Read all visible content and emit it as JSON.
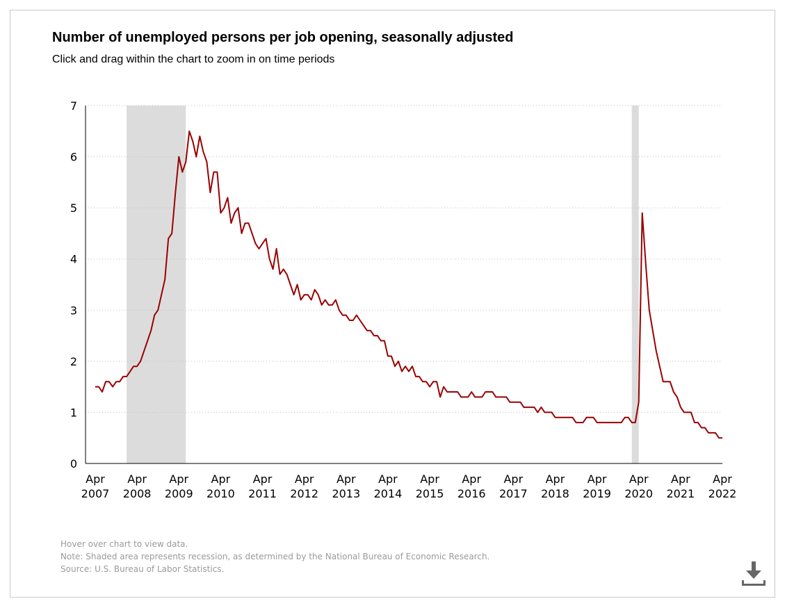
{
  "header": {
    "title": "Number of unemployed persons per job opening, seasonally adjusted",
    "subtitle": "Click and drag within the chart to zoom in on time periods"
  },
  "footer": {
    "hover_note": "Hover over chart to view data.",
    "recession_note": "Note: Shaded area represents recession, as determined by the National Bureau of Economic Research.",
    "source": "Source: U.S. Bureau of Labor Statistics."
  },
  "icons": {
    "download": "download-icon"
  },
  "colors": {
    "line": "#990000",
    "recession": "#dcdcdc",
    "grid": "#bdbdbd"
  },
  "chart_data": {
    "type": "line",
    "title": "Number of unemployed persons per job opening, seasonally adjusted",
    "xlabel": "",
    "ylabel": "",
    "ylim": [
      0,
      7
    ],
    "yticks": [
      0,
      1,
      2,
      3,
      4,
      5,
      6,
      7
    ],
    "xlim": [
      "2007-04",
      "2022-04"
    ],
    "xticks": [
      {
        "month": "Apr",
        "year": "2007",
        "date": "2007-04"
      },
      {
        "month": "Apr",
        "year": "2008",
        "date": "2008-04"
      },
      {
        "month": "Apr",
        "year": "2009",
        "date": "2009-04"
      },
      {
        "month": "Apr",
        "year": "2010",
        "date": "2010-04"
      },
      {
        "month": "Apr",
        "year": "2011",
        "date": "2011-04"
      },
      {
        "month": "Apr",
        "year": "2012",
        "date": "2012-04"
      },
      {
        "month": "Apr",
        "year": "2013",
        "date": "2013-04"
      },
      {
        "month": "Apr",
        "year": "2014",
        "date": "2014-04"
      },
      {
        "month": "Apr",
        "year": "2015",
        "date": "2015-04"
      },
      {
        "month": "Apr",
        "year": "2016",
        "date": "2016-04"
      },
      {
        "month": "Apr",
        "year": "2017",
        "date": "2017-04"
      },
      {
        "month": "Apr",
        "year": "2018",
        "date": "2018-04"
      },
      {
        "month": "Apr",
        "year": "2019",
        "date": "2019-04"
      },
      {
        "month": "Apr",
        "year": "2020",
        "date": "2020-04"
      },
      {
        "month": "Apr",
        "year": "2021",
        "date": "2021-04"
      },
      {
        "month": "Apr",
        "year": "2022",
        "date": "2022-04"
      }
    ],
    "grid": "horizontal dotted",
    "recessions": [
      {
        "start": "2008-01",
        "end": "2009-06"
      },
      {
        "start": "2020-02",
        "end": "2020-04"
      }
    ],
    "series": [
      {
        "name": "",
        "points": [
          [
            "2007-04",
            1.5
          ],
          [
            "2007-05",
            1.5
          ],
          [
            "2007-06",
            1.4
          ],
          [
            "2007-07",
            1.6
          ],
          [
            "2007-08",
            1.6
          ],
          [
            "2007-09",
            1.5
          ],
          [
            "2007-10",
            1.6
          ],
          [
            "2007-11",
            1.6
          ],
          [
            "2007-12",
            1.7
          ],
          [
            "2008-01",
            1.7
          ],
          [
            "2008-02",
            1.8
          ],
          [
            "2008-03",
            1.9
          ],
          [
            "2008-04",
            1.9
          ],
          [
            "2008-05",
            2.0
          ],
          [
            "2008-06",
            2.2
          ],
          [
            "2008-07",
            2.4
          ],
          [
            "2008-08",
            2.6
          ],
          [
            "2008-09",
            2.9
          ],
          [
            "2008-10",
            3.0
          ],
          [
            "2008-11",
            3.3
          ],
          [
            "2008-12",
            3.6
          ],
          [
            "2009-01",
            4.4
          ],
          [
            "2009-02",
            4.5
          ],
          [
            "2009-03",
            5.3
          ],
          [
            "2009-04",
            6.0
          ],
          [
            "2009-05",
            5.7
          ],
          [
            "2009-06",
            5.9
          ],
          [
            "2009-07",
            6.5
          ],
          [
            "2009-08",
            6.3
          ],
          [
            "2009-09",
            6.0
          ],
          [
            "2009-10",
            6.4
          ],
          [
            "2009-11",
            6.1
          ],
          [
            "2009-12",
            5.9
          ],
          [
            "2010-01",
            5.3
          ],
          [
            "2010-02",
            5.7
          ],
          [
            "2010-03",
            5.7
          ],
          [
            "2010-04",
            4.9
          ],
          [
            "2010-05",
            5.0
          ],
          [
            "2010-06",
            5.2
          ],
          [
            "2010-07",
            4.7
          ],
          [
            "2010-08",
            4.9
          ],
          [
            "2010-09",
            5.0
          ],
          [
            "2010-10",
            4.5
          ],
          [
            "2010-11",
            4.7
          ],
          [
            "2010-12",
            4.7
          ],
          [
            "2011-01",
            4.5
          ],
          [
            "2011-02",
            4.3
          ],
          [
            "2011-03",
            4.2
          ],
          [
            "2011-04",
            4.3
          ],
          [
            "2011-05",
            4.4
          ],
          [
            "2011-06",
            4.0
          ],
          [
            "2011-07",
            3.8
          ],
          [
            "2011-08",
            4.2
          ],
          [
            "2011-09",
            3.7
          ],
          [
            "2011-10",
            3.8
          ],
          [
            "2011-11",
            3.7
          ],
          [
            "2011-12",
            3.5
          ],
          [
            "2012-01",
            3.3
          ],
          [
            "2012-02",
            3.5
          ],
          [
            "2012-03",
            3.2
          ],
          [
            "2012-04",
            3.3
          ],
          [
            "2012-05",
            3.3
          ],
          [
            "2012-06",
            3.2
          ],
          [
            "2012-07",
            3.4
          ],
          [
            "2012-08",
            3.3
          ],
          [
            "2012-09",
            3.1
          ],
          [
            "2012-10",
            3.2
          ],
          [
            "2012-11",
            3.1
          ],
          [
            "2012-12",
            3.1
          ],
          [
            "2013-01",
            3.2
          ],
          [
            "2013-02",
            3.0
          ],
          [
            "2013-03",
            2.9
          ],
          [
            "2013-04",
            2.9
          ],
          [
            "2013-05",
            2.8
          ],
          [
            "2013-06",
            2.8
          ],
          [
            "2013-07",
            2.9
          ],
          [
            "2013-08",
            2.8
          ],
          [
            "2013-09",
            2.7
          ],
          [
            "2013-10",
            2.6
          ],
          [
            "2013-11",
            2.6
          ],
          [
            "2013-12",
            2.5
          ],
          [
            "2014-01",
            2.5
          ],
          [
            "2014-02",
            2.4
          ],
          [
            "2014-03",
            2.4
          ],
          [
            "2014-04",
            2.1
          ],
          [
            "2014-05",
            2.1
          ],
          [
            "2014-06",
            1.9
          ],
          [
            "2014-07",
            2.0
          ],
          [
            "2014-08",
            1.8
          ],
          [
            "2014-09",
            1.9
          ],
          [
            "2014-10",
            1.8
          ],
          [
            "2014-11",
            1.9
          ],
          [
            "2014-12",
            1.7
          ],
          [
            "2015-01",
            1.7
          ],
          [
            "2015-02",
            1.6
          ],
          [
            "2015-03",
            1.6
          ],
          [
            "2015-04",
            1.5
          ],
          [
            "2015-05",
            1.6
          ],
          [
            "2015-06",
            1.6
          ],
          [
            "2015-07",
            1.3
          ],
          [
            "2015-08",
            1.5
          ],
          [
            "2015-09",
            1.4
          ],
          [
            "2015-10",
            1.4
          ],
          [
            "2015-11",
            1.4
          ],
          [
            "2015-12",
            1.4
          ],
          [
            "2016-01",
            1.3
          ],
          [
            "2016-02",
            1.3
          ],
          [
            "2016-03",
            1.3
          ],
          [
            "2016-04",
            1.4
          ],
          [
            "2016-05",
            1.3
          ],
          [
            "2016-06",
            1.3
          ],
          [
            "2016-07",
            1.3
          ],
          [
            "2016-08",
            1.4
          ],
          [
            "2016-09",
            1.4
          ],
          [
            "2016-10",
            1.4
          ],
          [
            "2016-11",
            1.3
          ],
          [
            "2016-12",
            1.3
          ],
          [
            "2017-01",
            1.3
          ],
          [
            "2017-02",
            1.3
          ],
          [
            "2017-03",
            1.2
          ],
          [
            "2017-04",
            1.2
          ],
          [
            "2017-05",
            1.2
          ],
          [
            "2017-06",
            1.2
          ],
          [
            "2017-07",
            1.1
          ],
          [
            "2017-08",
            1.1
          ],
          [
            "2017-09",
            1.1
          ],
          [
            "2017-10",
            1.1
          ],
          [
            "2017-11",
            1.0
          ],
          [
            "2017-12",
            1.1
          ],
          [
            "2018-01",
            1.0
          ],
          [
            "2018-02",
            1.0
          ],
          [
            "2018-03",
            1.0
          ],
          [
            "2018-04",
            0.9
          ],
          [
            "2018-05",
            0.9
          ],
          [
            "2018-06",
            0.9
          ],
          [
            "2018-07",
            0.9
          ],
          [
            "2018-08",
            0.9
          ],
          [
            "2018-09",
            0.9
          ],
          [
            "2018-10",
            0.8
          ],
          [
            "2018-11",
            0.8
          ],
          [
            "2018-12",
            0.8
          ],
          [
            "2019-01",
            0.9
          ],
          [
            "2019-02",
            0.9
          ],
          [
            "2019-03",
            0.9
          ],
          [
            "2019-04",
            0.8
          ],
          [
            "2019-05",
            0.8
          ],
          [
            "2019-06",
            0.8
          ],
          [
            "2019-07",
            0.8
          ],
          [
            "2019-08",
            0.8
          ],
          [
            "2019-09",
            0.8
          ],
          [
            "2019-10",
            0.8
          ],
          [
            "2019-11",
            0.8
          ],
          [
            "2019-12",
            0.9
          ],
          [
            "2020-01",
            0.9
          ],
          [
            "2020-02",
            0.8
          ],
          [
            "2020-03",
            0.8
          ],
          [
            "2020-04",
            1.2
          ],
          [
            "2020-05",
            4.9
          ],
          [
            "2020-06",
            3.9
          ],
          [
            "2020-07",
            3.0
          ],
          [
            "2020-08",
            2.6
          ],
          [
            "2020-09",
            2.2
          ],
          [
            "2020-10",
            1.9
          ],
          [
            "2020-11",
            1.6
          ],
          [
            "2020-12",
            1.6
          ],
          [
            "2021-01",
            1.6
          ],
          [
            "2021-02",
            1.4
          ],
          [
            "2021-03",
            1.3
          ],
          [
            "2021-04",
            1.1
          ],
          [
            "2021-05",
            1.0
          ],
          [
            "2021-06",
            1.0
          ],
          [
            "2021-07",
            1.0
          ],
          [
            "2021-08",
            0.8
          ],
          [
            "2021-09",
            0.8
          ],
          [
            "2021-10",
            0.7
          ],
          [
            "2021-11",
            0.7
          ],
          [
            "2021-12",
            0.6
          ],
          [
            "2022-01",
            0.6
          ],
          [
            "2022-02",
            0.6
          ],
          [
            "2022-03",
            0.5
          ],
          [
            "2022-04",
            0.5
          ]
        ]
      }
    ]
  }
}
